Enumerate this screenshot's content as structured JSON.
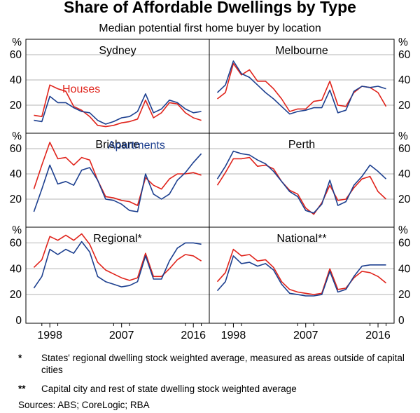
{
  "title": "Share of Affordable Dwellings by Type",
  "subtitle": "Median potential first home buyer by location",
  "footnotes": [
    {
      "mark": "*",
      "text": "States' regional dwelling stock weighted average, measured as areas outside of capital cities"
    },
    {
      "mark": "**",
      "text": "Capital city and rest of state dwelling stock weighted average"
    }
  ],
  "sources": "Sources: ABS; CoreLogic; RBA",
  "colors": {
    "houses": "#e0231b",
    "apartments": "#1c3f8f",
    "frame": "#000000",
    "grid": "#b4b4b4"
  },
  "chart_data": {
    "type": "line",
    "unit": "%",
    "x_ticks": [
      "1998",
      "2007",
      "2016"
    ],
    "x_range": [
      1995,
      2018
    ],
    "y_ticks": [
      0,
      20,
      40,
      60
    ],
    "ylim": [
      0,
      70
    ],
    "annotations": [
      {
        "text": "Houses",
        "panel": "Sydney",
        "series": "Houses"
      },
      {
        "text": "Apartments",
        "panel": "Brisbane",
        "series": "Apartments"
      }
    ],
    "panels": [
      {
        "name": "Sydney",
        "x": [
          1996,
          1997,
          1998,
          1999,
          2000,
          2001,
          2002,
          2003,
          2004,
          2005,
          2006,
          2007,
          2008,
          2009,
          2010,
          2011,
          2012,
          2013,
          2014,
          2015,
          2016,
          2017
        ],
        "series": [
          {
            "name": "Houses",
            "values": [
              12,
              11,
              36,
              33,
              31,
              19,
              16,
              11,
              4,
              3,
              4,
              6,
              7,
              9,
              24,
              10,
              14,
              22,
              21,
              14,
              10,
              8
            ]
          },
          {
            "name": "Apartments",
            "values": [
              8,
              7,
              27,
              22,
              22,
              18,
              15,
              14,
              8,
              5,
              7,
              10,
              11,
              15,
              29,
              14,
              17,
              24,
              22,
              17,
              14,
              15
            ]
          }
        ]
      },
      {
        "name": "Melbourne",
        "x": [
          1996,
          1997,
          1998,
          1999,
          2000,
          2001,
          2002,
          2003,
          2004,
          2005,
          2006,
          2007,
          2008,
          2009,
          2010,
          2011,
          2012,
          2013,
          2014,
          2015,
          2016,
          2017
        ],
        "series": [
          {
            "name": "Houses",
            "values": [
              25,
              30,
              53,
              44,
              48,
              39,
              39,
              33,
              25,
              15,
              17,
              17,
              23,
              24,
              39,
              20,
              19,
              30,
              35,
              34,
              30,
              19
            ]
          },
          {
            "name": "Apartments",
            "values": [
              30,
              36,
              55,
              45,
              42,
              36,
              30,
              25,
              19,
              13,
              15,
              16,
              18,
              18,
              32,
              14,
              16,
              31,
              35,
              34,
              35,
              33
            ]
          }
        ]
      },
      {
        "name": "Brisbane",
        "x": [
          1996,
          1997,
          1998,
          1999,
          2000,
          2001,
          2002,
          2003,
          2004,
          2005,
          2006,
          2007,
          2008,
          2009,
          2010,
          2011,
          2012,
          2013,
          2014,
          2015,
          2016,
          2017
        ],
        "series": [
          {
            "name": "Houses",
            "values": [
              28,
              47,
              65,
              52,
              53,
              47,
              53,
              51,
              35,
              22,
              21,
              19,
              18,
              15,
              37,
              31,
              28,
              36,
              40,
              40,
              41,
              39
            ]
          },
          {
            "name": "Apartments",
            "values": [
              10,
              28,
              47,
              32,
              34,
              31,
              43,
              45,
              35,
              20,
              19,
              16,
              11,
              10,
              40,
              24,
              20,
              24,
              35,
              41,
              49,
              56
            ]
          }
        ]
      },
      {
        "name": "Perth",
        "x": [
          1996,
          1997,
          1998,
          1999,
          2000,
          2001,
          2002,
          2003,
          2004,
          2005,
          2006,
          2007,
          2008,
          2009,
          2010,
          2011,
          2012,
          2013,
          2014,
          2015,
          2016,
          2017
        ],
        "series": [
          {
            "name": "Houses",
            "values": [
              31,
              41,
              52,
              52,
              53,
              46,
              47,
              44,
              34,
              27,
              24,
              13,
              8,
              17,
              31,
              19,
              20,
              29,
              36,
              38,
              26,
              20
            ]
          },
          {
            "name": "Apartments",
            "values": [
              36,
              46,
              58,
              56,
              55,
              51,
              48,
              42,
              34,
              26,
              22,
              11,
              9,
              16,
              35,
              15,
              18,
              31,
              38,
              47,
              42,
              36
            ]
          }
        ]
      },
      {
        "name": "Regional*",
        "x": [
          1996,
          1997,
          1998,
          1999,
          2000,
          2001,
          2002,
          2003,
          2004,
          2005,
          2006,
          2007,
          2008,
          2009,
          2010,
          2011,
          2012,
          2013,
          2014,
          2015,
          2016,
          2017
        ],
        "series": [
          {
            "name": "Houses",
            "values": [
              41,
              47,
              65,
              62,
              66,
              62,
              67,
              59,
              45,
              39,
              36,
              33,
              31,
              33,
              52,
              34,
              34,
              40,
              47,
              51,
              50,
              46
            ]
          },
          {
            "name": "Apartments",
            "values": [
              25,
              34,
              55,
              51,
              55,
              52,
              61,
              53,
              34,
              30,
              28,
              26,
              27,
              30,
              50,
              32,
              32,
              46,
              56,
              60,
              60,
              59
            ]
          }
        ]
      },
      {
        "name": "National**",
        "x": [
          1996,
          1997,
          1998,
          1999,
          2000,
          2001,
          2002,
          2003,
          2004,
          2005,
          2006,
          2007,
          2008,
          2009,
          2010,
          2011,
          2012,
          2013,
          2014,
          2015,
          2016,
          2017
        ],
        "series": [
          {
            "name": "Houses",
            "values": [
              30,
              37,
              55,
              50,
              51,
              46,
              47,
              41,
              30,
              24,
              22,
              21,
              20,
              21,
              40,
              24,
              25,
              33,
              38,
              37,
              34,
              29
            ]
          },
          {
            "name": "Apartments",
            "values": [
              23,
              30,
              50,
              44,
              45,
              42,
              44,
              39,
              28,
              21,
              20,
              19,
              19,
              20,
              38,
              22,
              24,
              34,
              42,
              43,
              43,
              43
            ]
          }
        ]
      }
    ]
  }
}
